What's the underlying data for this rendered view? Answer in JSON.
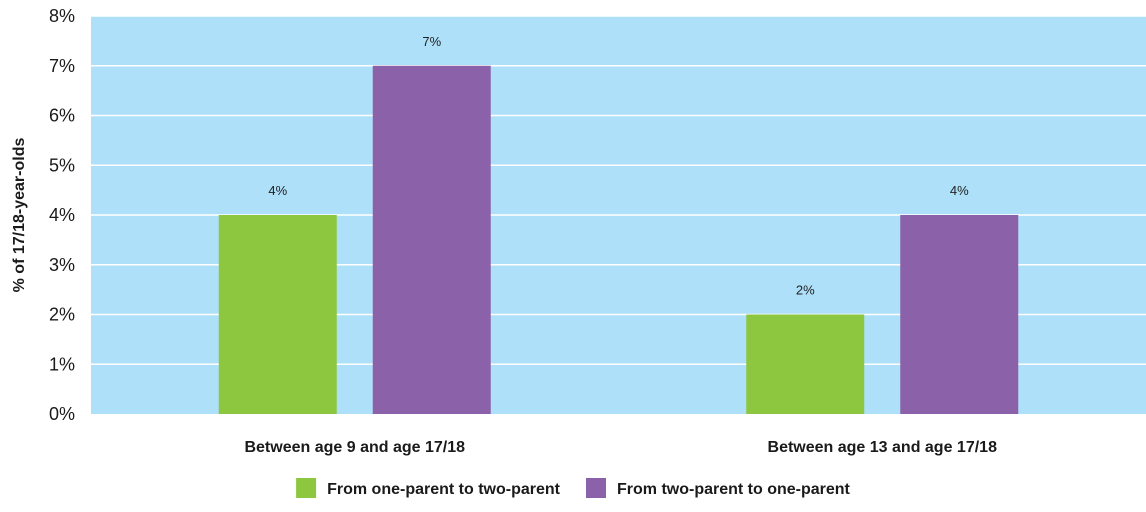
{
  "chart_data": {
    "type": "bar",
    "categories": [
      "Between age 9 and age 17/18",
      "Between age 13 and age 17/18"
    ],
    "series": [
      {
        "name": "From one-parent to two-parent",
        "values": [
          4,
          2
        ],
        "labels": [
          "4%",
          "2%"
        ]
      },
      {
        "name": "From two-parent to one-parent",
        "values": [
          7,
          4
        ],
        "labels": [
          "7%",
          "4%"
        ]
      }
    ],
    "title": "",
    "xlabel": "",
    "ylabel": "% of 17/18-year-olds",
    "ylim": [
      0,
      8
    ],
    "yticks": [
      0,
      1,
      2,
      3,
      4,
      5,
      6,
      7,
      8
    ],
    "ytick_labels": [
      "0%",
      "1%",
      "2%",
      "3%",
      "4%",
      "5%",
      "6%",
      "7%",
      "8%"
    ],
    "grid": true,
    "legend_position": "bottom"
  },
  "colors": {
    "plot_background": "#aee0f9",
    "gridline": "#ffffff",
    "series": [
      "#8dc63f",
      "#8b62aa"
    ]
  }
}
